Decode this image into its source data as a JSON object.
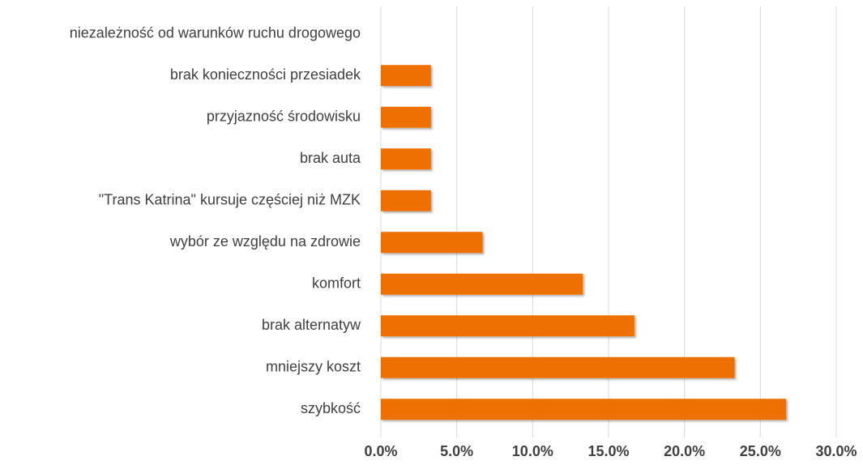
{
  "chart_data": {
    "type": "barh",
    "categories": [
      "niezależność od warunków ruchu drogowego",
      "brak konieczności przesiadek",
      "przyjazność środowisku",
      "brak auta",
      "\"Trans Katrina\" kursuje częściej niż MZK",
      "wybór ze względu na zdrowie",
      "komfort",
      "brak alternatyw",
      "mniejszy koszt",
      "szybkość"
    ],
    "values": [
      0,
      3.3,
      3.3,
      3.3,
      3.3,
      6.7,
      13.3,
      16.7,
      23.3,
      26.7
    ],
    "color": "#ed7000",
    "xlim": [
      0,
      30
    ],
    "xticks": [
      {
        "value": 0,
        "label": "0.0%"
      },
      {
        "value": 5,
        "label": "5.0%"
      },
      {
        "value": 10,
        "label": "10.0%"
      },
      {
        "value": 15,
        "label": "15.0%"
      },
      {
        "value": 20,
        "label": "20.0%"
      },
      {
        "value": 25,
        "label": "25.0%"
      },
      {
        "value": 30,
        "label": "30.0%"
      }
    ],
    "grid": true
  }
}
